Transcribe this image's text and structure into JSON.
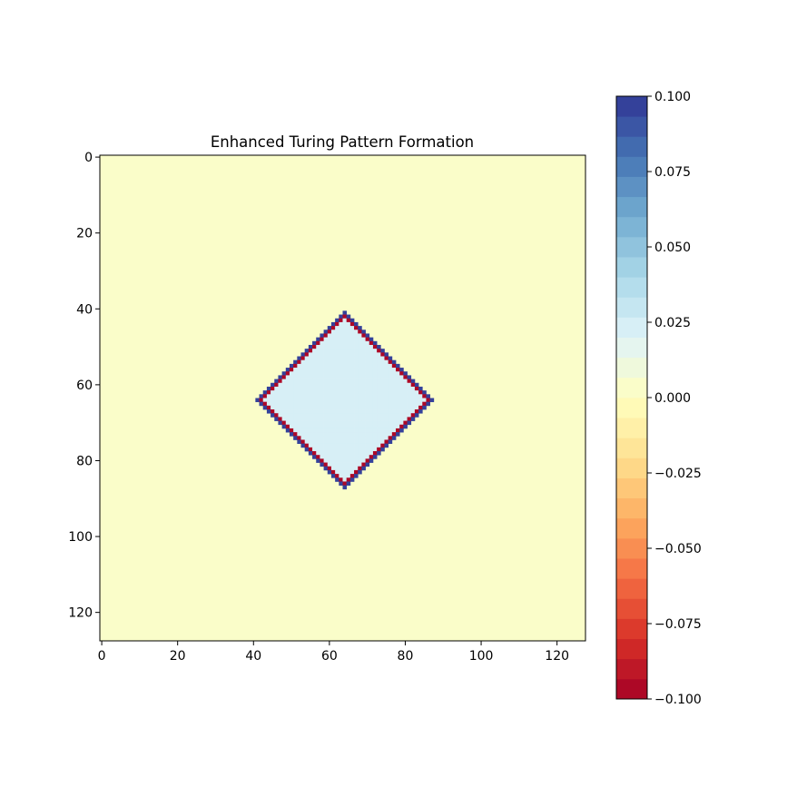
{
  "chart_data": {
    "type": "heatmap",
    "title": "Enhanced Turing Pattern Formation",
    "grid_size": [
      128,
      128
    ],
    "x_ticks": [
      "0",
      "20",
      "40",
      "60",
      "80",
      "100",
      "120"
    ],
    "y_ticks": [
      "0",
      "20",
      "40",
      "60",
      "80",
      "100",
      "120"
    ],
    "x_tick_values": [
      0,
      20,
      40,
      60,
      80,
      100,
      120
    ],
    "y_tick_values": [
      0,
      20,
      40,
      60,
      80,
      100,
      120
    ],
    "xlim": [
      -0.5,
      127.5
    ],
    "ylim": [
      127.5,
      -0.5
    ],
    "background_value": 0.0,
    "pattern": {
      "shape": "diamond-ring",
      "center": [
        64,
        64
      ],
      "radius_l1": 23,
      "inner_value": 0.02,
      "outer_ring_value": 0.1,
      "inner_ring_value": -0.1
    },
    "colorbar": {
      "colormap": "RdYlBu",
      "range": [
        -0.1,
        0.1
      ],
      "levels": 30,
      "ticks": [
        "0.100",
        "0.075",
        "0.050",
        "0.025",
        "0.000",
        "−0.025",
        "−0.050",
        "−0.075",
        "−0.100"
      ],
      "tick_values": [
        0.1,
        0.075,
        0.05,
        0.025,
        0.0,
        -0.025,
        -0.05,
        -0.075,
        -0.1
      ]
    }
  }
}
